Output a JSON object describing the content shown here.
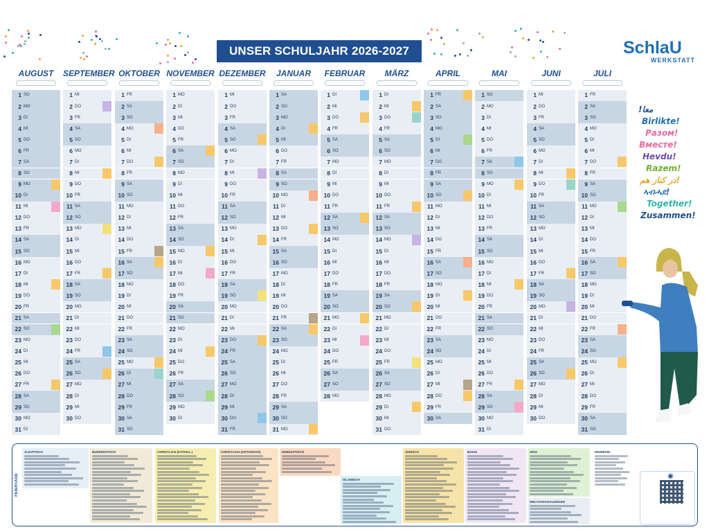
{
  "header": {
    "title": "UNSER SCHULJAHR 2026-2027",
    "logo_main": "SchlaU",
    "logo_sub": "WERKSTATT"
  },
  "greetings": [
    {
      "text": "!معا",
      "color": "#1f4f91"
    },
    {
      "text": "Birlikte!",
      "color": "#1f6fb3"
    },
    {
      "text": "Разом!",
      "color": "#e86aa0"
    },
    {
      "text": "Вместе!",
      "color": "#e86aa0"
    },
    {
      "text": "Hevdu!",
      "color": "#6a4bb0"
    },
    {
      "text": "Razem!",
      "color": "#6fb12f"
    },
    {
      "text": "در کنار هم!",
      "color": "#e8a42a"
    },
    {
      "text": "ኣብሓደ!",
      "color": "#1f6fb3"
    },
    {
      "text": "Together!",
      "color": "#2fb3a8"
    },
    {
      "text": "Zusammen!",
      "color": "#1f4f91"
    }
  ],
  "months": [
    {
      "name": "AUGUST",
      "start": 6,
      "days": 31,
      "holidays": [
        1,
        2,
        3,
        4,
        5,
        6,
        7,
        8,
        9,
        10
      ]
    },
    {
      "name": "SEPTEMBER",
      "start": 2,
      "days": 30,
      "holidays": []
    },
    {
      "name": "OKTOBER",
      "start": 4,
      "days": 31,
      "holidays": [
        26,
        27,
        28,
        29,
        30
      ]
    },
    {
      "name": "NOVEMBER",
      "start": 0,
      "days": 30,
      "holidays": []
    },
    {
      "name": "DEZEMBER",
      "start": 2,
      "days": 31,
      "holidays": [
        23,
        24,
        25,
        26,
        27,
        28,
        29,
        30,
        31
      ]
    },
    {
      "name": "JANUAR",
      "start": 5,
      "days": 31,
      "holidays": [
        1,
        2,
        3,
        4,
        5
      ]
    },
    {
      "name": "FEBRUAR",
      "start": 1,
      "days": 28,
      "holidays": []
    },
    {
      "name": "MÄRZ",
      "start": 1,
      "days": 31,
      "holidays": []
    },
    {
      "name": "APRIL",
      "start": 4,
      "days": 30,
      "holidays": [
        1,
        2,
        3,
        4,
        5,
        6,
        7,
        8,
        9,
        10
      ]
    },
    {
      "name": "MAI",
      "start": 6,
      "days": 31,
      "holidays": []
    },
    {
      "name": "JUNI",
      "start": 2,
      "days": 30,
      "holidays": []
    },
    {
      "name": "JULI",
      "start": 4,
      "days": 31,
      "holidays": []
    }
  ],
  "weekdays": [
    "MO",
    "DI",
    "MI",
    "DO",
    "FR",
    "SA",
    "SO"
  ],
  "tag_colors": [
    "#f7c86a",
    "#9ad3c9",
    "#f4a9c8",
    "#c9b3e6",
    "#a9d98a",
    "#f3e27c",
    "#f6b08a",
    "#8ec7ea",
    "#b7a58a"
  ],
  "legend": {
    "side_label": "FEIERTAGE",
    "blocks": [
      {
        "title": "ALEVITISCH",
        "color": "#e6eef6"
      },
      {
        "title": "BUDDHISTISCH",
        "color": "#f2ead7"
      },
      {
        "title": "CHRISTLICH (KATHOL.)",
        "color": "#f6edb0"
      },
      {
        "title": "CHRISTLICH (ORTHODOX)",
        "color": "#fbe3c5"
      },
      {
        "title": "HINDUISTISCH",
        "color": "#fbd9c1"
      },
      {
        "title": "ISLAMISCH",
        "color": "#d7eef3"
      },
      {
        "title": "JÜDISCH",
        "color": "#f7e3a8"
      },
      {
        "title": "BAHAI",
        "color": "#f1e6f4"
      },
      {
        "title": "SIKH",
        "color": "#e0f0d4"
      },
      {
        "title": "WELTANSCHAUUNGEN",
        "color": "#e9eef4"
      },
      {
        "title": "HINWEISE",
        "color": "#ffffff"
      }
    ]
  }
}
